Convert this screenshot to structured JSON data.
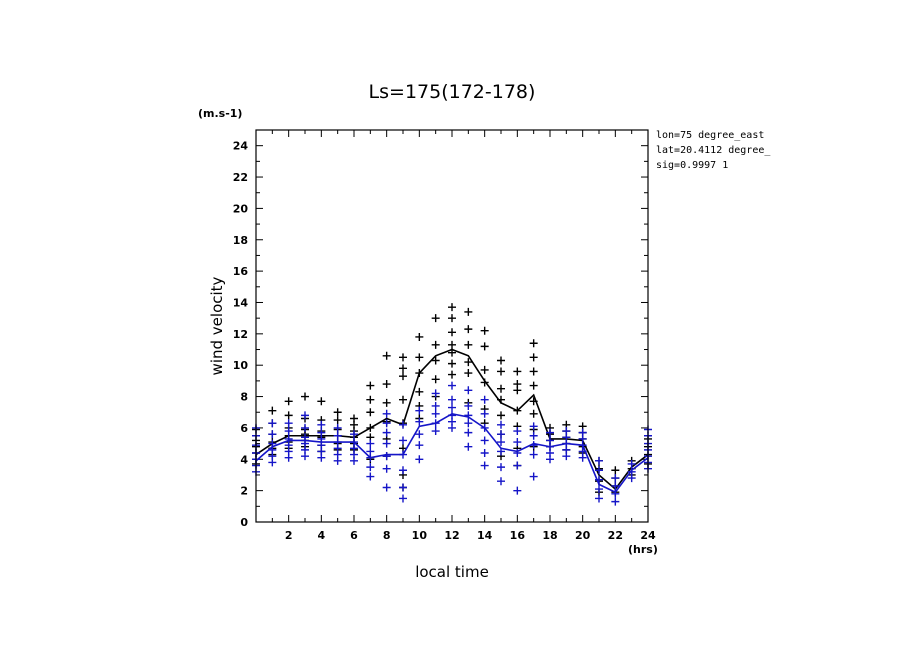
{
  "chart_data": {
    "type": "scatter",
    "title": "Ls=175(172-178)",
    "xlabel": "local time",
    "ylabel": "wind velocity",
    "x_unit": "(hrs)",
    "y_unit": "(m.s-1)",
    "xlim": [
      0,
      24
    ],
    "ylim": [
      0,
      25
    ],
    "xticks": [
      "2",
      "4",
      "6",
      "8",
      "10",
      "12",
      "14",
      "16",
      "18",
      "20",
      "22",
      "24"
    ],
    "yticks": [
      "0",
      "2",
      "4",
      "6",
      "8",
      "10",
      "12",
      "14",
      "16",
      "18",
      "20",
      "22",
      "24"
    ],
    "info": [
      "lon=75 degree_east",
      "lat=20.4112 degree_",
      "sig=0.9997 1"
    ],
    "colors": {
      "series_1": "#000000",
      "series_2": "#1515c8"
    },
    "series": [
      {
        "x": [
          0,
          1,
          2,
          3,
          4,
          5,
          6,
          7,
          8,
          9,
          10,
          11,
          12,
          13,
          14,
          15,
          16,
          17,
          18,
          19,
          20,
          21,
          22,
          23,
          24
        ],
        "mean": [
          4.3,
          5.0,
          5.5,
          5.5,
          5.5,
          5.5,
          5.4,
          6.0,
          6.6,
          6.2,
          9.5,
          10.6,
          11.0,
          10.6,
          9.0,
          7.6,
          7.1,
          8.1,
          5.3,
          5.3,
          5.2,
          3.0,
          2.1,
          3.5,
          4.3
        ],
        "points": [
          [
            3.7,
            4.0,
            4.4,
            4.8,
            5.2,
            5.9
          ],
          [
            4.3,
            4.7,
            5.1,
            5.6,
            6.3,
            7.1
          ],
          [
            4.7,
            5.1,
            5.5,
            6.0,
            6.8,
            7.7
          ],
          [
            4.8,
            5.2,
            5.6,
            5.9,
            6.6,
            8.0
          ],
          [
            4.5,
            4.9,
            5.4,
            5.8,
            6.5,
            7.7
          ],
          [
            4.6,
            5.0,
            5.5,
            5.9,
            6.5,
            7.0
          ],
          [
            4.6,
            5.0,
            5.4,
            5.8,
            6.2,
            6.6
          ],
          [
            4.0,
            5.4,
            6.0,
            7.0,
            7.8,
            8.7
          ],
          [
            4.2,
            5.3,
            6.4,
            7.6,
            8.8,
            10.6
          ],
          [
            2.2,
            3.0,
            4.7,
            6.3,
            7.8,
            9.3,
            9.8,
            10.5
          ],
          [
            6.6,
            7.4,
            8.3,
            9.5,
            10.5,
            11.8
          ],
          [
            8.0,
            9.1,
            10.3,
            11.3,
            13.0
          ],
          [
            9.4,
            10.1,
            10.8,
            11.3,
            12.1,
            13.0,
            13.7
          ],
          [
            7.6,
            9.5,
            10.2,
            11.3,
            12.3,
            13.4
          ],
          [
            6.3,
            7.2,
            8.9,
            9.7,
            11.2,
            12.2
          ],
          [
            4.2,
            5.6,
            6.8,
            7.8,
            8.5,
            9.6,
            10.3
          ],
          [
            3.6,
            4.7,
            6.1,
            7.1,
            8.4,
            8.8,
            9.6
          ],
          [
            4.8,
            5.9,
            6.9,
            7.7,
            8.7,
            9.6,
            10.5,
            11.4
          ],
          [
            4.8,
            5.2,
            5.6,
            6.0
          ],
          [
            4.6,
            5.0,
            5.4,
            5.8,
            6.2
          ],
          [
            4.4,
            4.8,
            5.3,
            5.7,
            6.1
          ],
          [
            1.9,
            2.6,
            3.4,
            3.9
          ],
          [
            1.9,
            2.3,
            2.8,
            3.3
          ],
          [
            3.0,
            3.4,
            3.9
          ],
          [
            3.7,
            4.3,
            4.8,
            5.3
          ]
        ]
      },
      {
        "x": [
          0,
          1,
          2,
          3,
          4,
          5,
          6,
          7,
          8,
          9,
          10,
          11,
          12,
          13,
          14,
          15,
          16,
          17,
          18,
          19,
          20,
          21,
          22,
          23,
          24
        ],
        "mean": [
          3.9,
          4.8,
          5.2,
          5.2,
          5.1,
          5.1,
          5.1,
          4.1,
          4.3,
          4.3,
          6.1,
          6.3,
          6.9,
          6.7,
          6.0,
          4.7,
          4.5,
          5.0,
          4.8,
          5.0,
          4.9,
          2.4,
          1.9,
          3.3,
          4.1
        ],
        "points": [
          [
            3.2,
            3.6,
            4.0,
            4.4,
            4.9,
            5.5,
            6.0
          ],
          [
            3.8,
            4.2,
            4.6,
            5.0,
            5.6,
            6.3
          ],
          [
            4.1,
            4.5,
            4.9,
            5.3,
            5.8,
            6.3
          ],
          [
            4.2,
            4.6,
            5.0,
            5.4,
            6.0,
            6.8
          ],
          [
            4.1,
            4.5,
            4.9,
            5.3,
            5.7,
            6.2
          ],
          [
            3.9,
            4.3,
            4.7,
            5.1,
            5.5,
            6.0
          ],
          [
            3.9,
            4.3,
            4.7,
            5.1,
            5.6
          ],
          [
            2.9,
            3.5,
            4.1,
            4.5,
            5.0
          ],
          [
            2.2,
            3.4,
            4.2,
            5.0,
            5.7,
            6.3,
            6.9
          ],
          [
            1.5,
            2.2,
            3.3,
            4.3,
            5.2,
            6.2
          ],
          [
            4.0,
            4.9,
            5.6,
            6.4,
            7.1
          ],
          [
            5.8,
            6.3,
            6.9,
            7.4,
            8.2
          ],
          [
            6.0,
            6.4,
            6.8,
            7.3,
            7.8,
            8.7
          ],
          [
            4.8,
            5.7,
            6.3,
            6.8,
            7.4,
            8.4
          ],
          [
            3.6,
            4.4,
            5.2,
            6.0,
            6.9,
            7.8
          ],
          [
            2.6,
            3.5,
            4.5,
            5.1,
            5.6,
            6.2
          ],
          [
            2.0,
            3.6,
            4.4,
            5.1,
            5.8
          ],
          [
            2.9,
            4.3,
            4.9,
            5.5,
            6.1
          ],
          [
            4.0,
            4.4,
            4.8,
            5.2,
            5.7
          ],
          [
            4.2,
            4.6,
            5.0,
            5.4,
            5.8
          ],
          [
            4.1,
            4.5,
            4.9,
            5.3,
            5.7
          ],
          [
            1.5,
            2.1,
            2.7,
            3.3,
            3.9
          ],
          [
            1.3,
            1.8,
            2.3,
            2.8
          ],
          [
            2.8,
            3.2,
            3.7
          ],
          [
            3.4,
            3.8,
            4.2,
            4.6,
            5.0,
            5.5,
            5.9
          ]
        ]
      }
    ]
  }
}
